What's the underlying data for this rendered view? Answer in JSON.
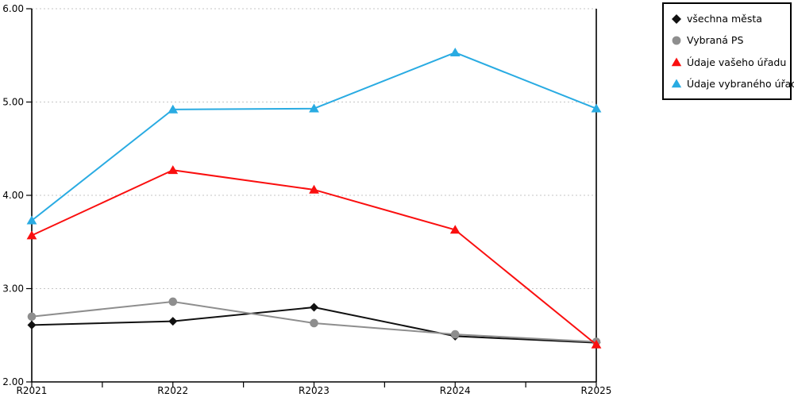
{
  "chart_data": {
    "type": "line",
    "title": "",
    "categories": [
      "R2021",
      "R2022",
      "R2023",
      "R2024",
      "R2025"
    ],
    "series": [
      {
        "name": "všechna města",
        "marker": "diamond",
        "color": "#111111",
        "values": [
          2.61,
          2.65,
          2.8,
          2.49,
          2.42
        ]
      },
      {
        "name": "Vybraná PS",
        "marker": "circle",
        "color": "#8e8e8e",
        "values": [
          2.7,
          2.86,
          2.63,
          2.51,
          2.43
        ]
      },
      {
        "name": "Údaje vašeho úřadu",
        "marker": "triangle",
        "color": "#fa0f0f",
        "values": [
          3.57,
          4.27,
          4.06,
          3.63,
          2.4
        ]
      },
      {
        "name": "Údaje vybraného úřadu",
        "marker": "triangle",
        "color": "#29abe2",
        "values": [
          3.73,
          4.92,
          4.93,
          5.53,
          4.93
        ]
      }
    ],
    "ylim": [
      2.0,
      6.0
    ],
    "yticks": [
      2,
      3,
      4,
      5,
      6
    ],
    "ytick_labels": [
      "2.00",
      "3.00",
      "4.00",
      "5.00",
      "6.00"
    ],
    "grid": "horizontal-dotted",
    "grid_color": "#c6c6c6",
    "axis_color": "#000000",
    "legend_position": "top-right"
  }
}
